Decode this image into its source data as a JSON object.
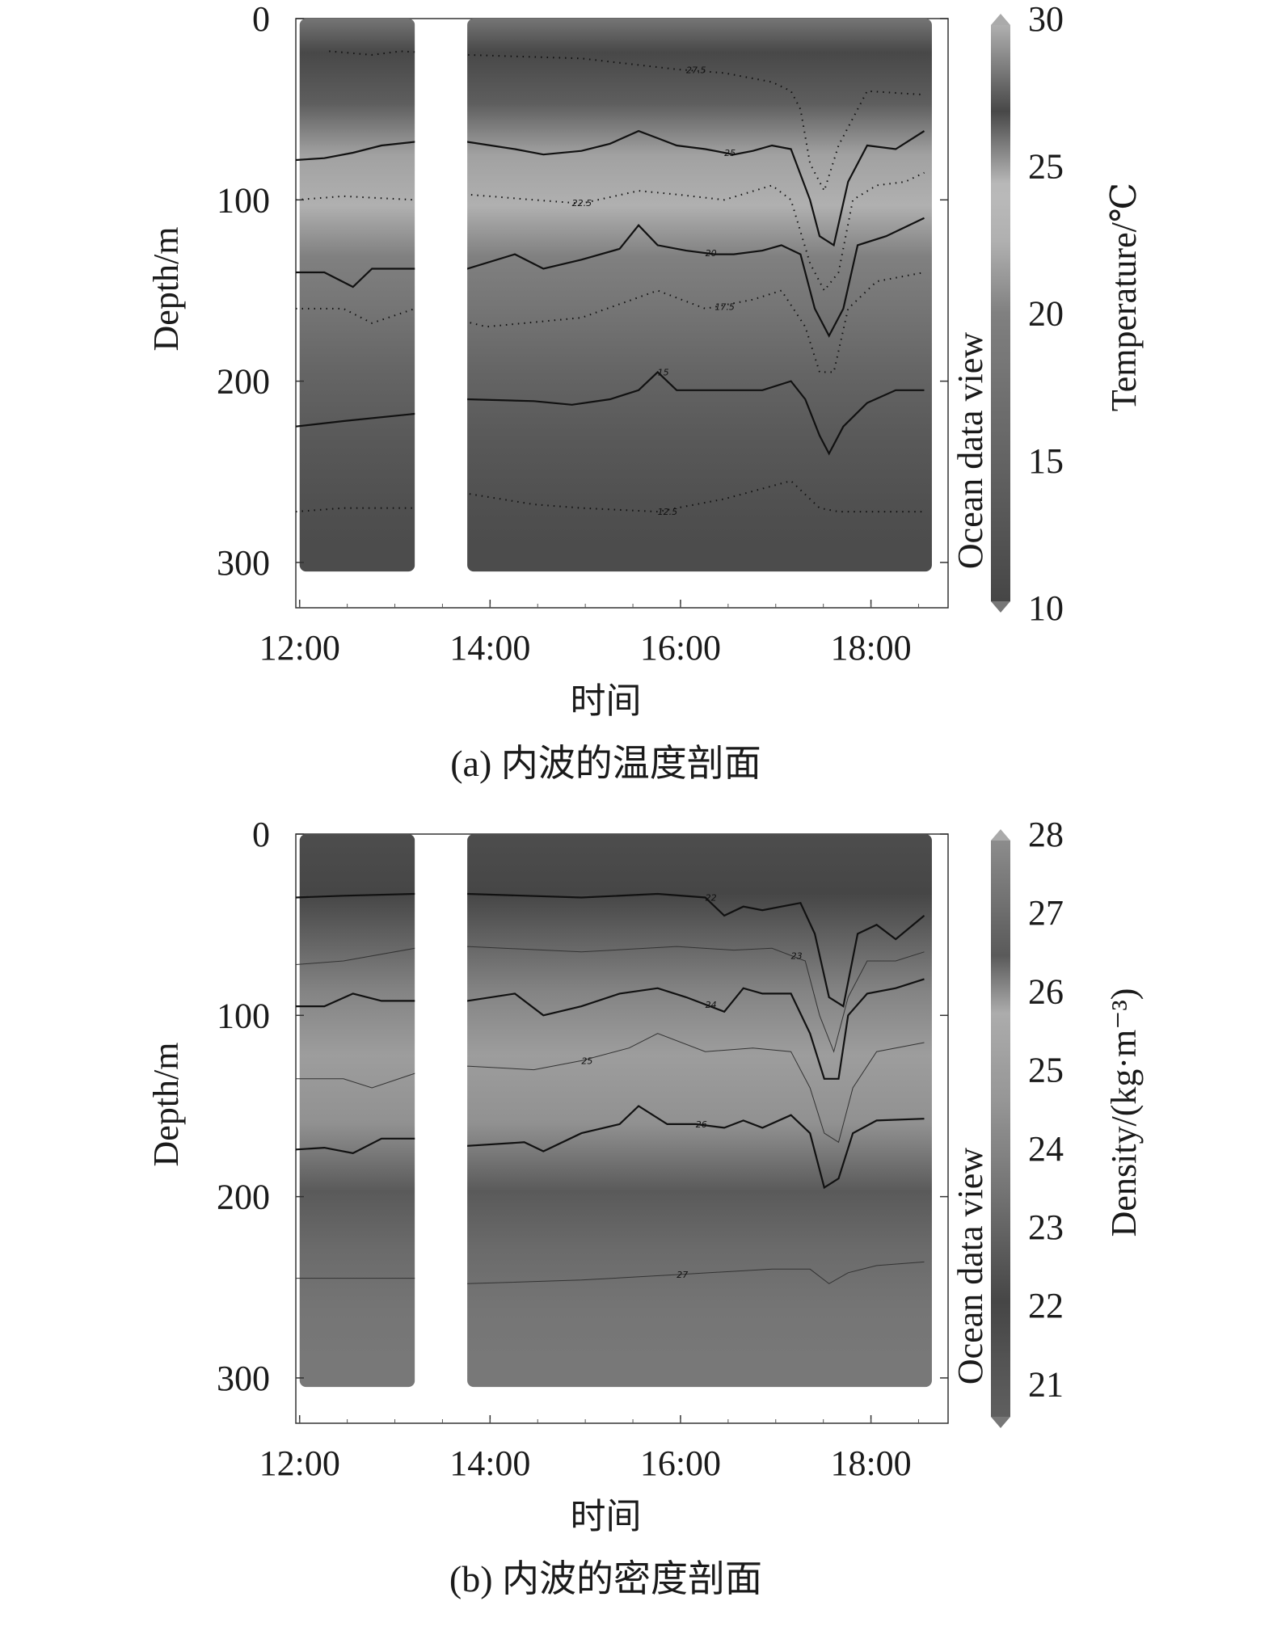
{
  "chart_data": [
    {
      "type": "heatmap",
      "caption": "(a) 内波的温度剖面",
      "xlabel": "时间",
      "ylabel": "Depth/m",
      "watermark": "Ocean data view",
      "colorbar_label": "Temperature/℃",
      "x_ticks": [
        "12:00",
        "14:00",
        "16:00",
        "18:00"
      ],
      "y_ticks": [
        "0",
        "100",
        "200",
        "300"
      ],
      "colorbar_ticks": [
        "10",
        "15",
        "20",
        "25",
        "30"
      ],
      "xlim": [
        0,
        6.85
      ],
      "ylim": [
        0,
        325
      ],
      "colorbar_range": [
        10,
        30
      ],
      "x_unit_note": "hours after 12:00",
      "data_gap": [
        1.25,
        1.8
      ],
      "background_profile": [
        {
          "depth": 0,
          "value": 26.0
        },
        {
          "depth": 20,
          "value": 27.0
        },
        {
          "depth": 50,
          "value": 26.5
        },
        {
          "depth": 80,
          "value": 25.0
        },
        {
          "depth": 110,
          "value": 22.5
        },
        {
          "depth": 140,
          "value": 20.0
        },
        {
          "depth": 170,
          "value": 18.0
        },
        {
          "depth": 210,
          "value": 15.0
        },
        {
          "depth": 250,
          "value": 13.0
        },
        {
          "depth": 290,
          "value": 11.5
        },
        {
          "depth": 310,
          "value": 11.0
        }
      ],
      "contours": [
        {
          "level": 27.5,
          "label": "27.5",
          "style": "dotted",
          "label_x": 4.1,
          "x": [
            0.35,
            0.8,
            1.1,
            1.8,
            3.0,
            4.0,
            4.5,
            5.0,
            5.2,
            5.3,
            5.4,
            5.55,
            5.7,
            6.0,
            6.6
          ],
          "y": [
            18,
            20,
            18,
            20,
            22,
            28,
            30,
            35,
            40,
            50,
            80,
            95,
            70,
            40,
            42
          ]
        },
        {
          "level": 25,
          "label": "25",
          "style": "solid",
          "label_x": 4.5,
          "x": [
            0,
            0.3,
            0.6,
            0.9,
            1.25,
            1.8,
            2.3,
            2.6,
            3.0,
            3.3,
            3.6,
            3.8,
            4.0,
            4.3,
            4.6,
            4.8,
            5.0,
            5.2,
            5.4,
            5.5,
            5.65,
            5.8,
            6.0,
            6.3,
            6.6
          ],
          "y": [
            78,
            77,
            74,
            70,
            68,
            68,
            72,
            75,
            73,
            69,
            62,
            66,
            70,
            72,
            75,
            73,
            70,
            72,
            100,
            120,
            125,
            90,
            70,
            72,
            62
          ]
        },
        {
          "level": 22.5,
          "label": "22.5",
          "style": "dotted",
          "label_x": 2.9,
          "x": [
            0,
            0.5,
            1.25,
            1.8,
            2.5,
            3.0,
            3.6,
            4.0,
            4.5,
            5.0,
            5.2,
            5.4,
            5.55,
            5.7,
            5.85,
            6.1,
            6.4,
            6.6
          ],
          "y": [
            100,
            98,
            100,
            97,
            100,
            102,
            95,
            97,
            100,
            92,
            100,
            135,
            150,
            140,
            100,
            92,
            90,
            85
          ]
        },
        {
          "level": 20,
          "label": "20",
          "style": "solid",
          "label_x": 4.3,
          "x": [
            0,
            0.3,
            0.6,
            0.8,
            1.25,
            1.8,
            2.3,
            2.6,
            3.0,
            3.4,
            3.6,
            3.8,
            4.1,
            4.4,
            4.6,
            4.9,
            5.1,
            5.3,
            5.45,
            5.6,
            5.75,
            5.9,
            6.2,
            6.6
          ],
          "y": [
            140,
            140,
            148,
            138,
            138,
            138,
            130,
            138,
            133,
            127,
            114,
            125,
            128,
            130,
            130,
            128,
            125,
            130,
            160,
            175,
            160,
            125,
            120,
            110
          ]
        },
        {
          "level": 17.5,
          "label": "17.5",
          "style": "dotted",
          "label_x": 4.4,
          "x": [
            0,
            0.5,
            0.8,
            1.25,
            2.0,
            3.0,
            3.8,
            4.3,
            4.8,
            5.1,
            5.35,
            5.5,
            5.65,
            5.8,
            6.1,
            6.6
          ],
          "y": [
            160,
            160,
            168,
            160,
            170,
            165,
            150,
            160,
            155,
            150,
            170,
            195,
            195,
            160,
            145,
            140
          ]
        },
        {
          "level": 15,
          "label": "15",
          "style": "solid",
          "label_x": 3.8,
          "x": [
            0,
            0.5,
            1.25,
            1.8,
            2.5,
            2.9,
            3.3,
            3.6,
            3.8,
            4.0,
            4.3,
            4.6,
            4.9,
            5.2,
            5.35,
            5.5,
            5.6,
            5.75,
            6.0,
            6.3,
            6.6
          ],
          "y": [
            225,
            222,
            218,
            210,
            211,
            213,
            210,
            205,
            195,
            205,
            205,
            205,
            205,
            200,
            210,
            230,
            240,
            225,
            212,
            205,
            205
          ]
        },
        {
          "level": 12.5,
          "label": "12.5",
          "style": "dotted",
          "label_x": 3.8,
          "x": [
            0,
            0.5,
            1.25,
            1.8,
            2.5,
            3.0,
            3.8,
            4.5,
            5.2,
            5.5,
            5.7,
            6.0,
            6.6
          ],
          "y": [
            272,
            270,
            270,
            262,
            268,
            270,
            272,
            265,
            255,
            270,
            272,
            272,
            272
          ]
        }
      ]
    },
    {
      "type": "heatmap",
      "caption": "(b) 内波的密度剖面",
      "xlabel": "时间",
      "ylabel": "Depth/m",
      "watermark": "Ocean data view",
      "colorbar_label": "Density/(kg·m⁻³)",
      "x_ticks": [
        "12:00",
        "14:00",
        "16:00",
        "18:00"
      ],
      "y_ticks": [
        "0",
        "100",
        "200",
        "300"
      ],
      "colorbar_ticks": [
        "21",
        "22",
        "23",
        "24",
        "25",
        "26",
        "27",
        "28"
      ],
      "xlim": [
        0,
        6.85
      ],
      "ylim": [
        0,
        325
      ],
      "colorbar_range": [
        20.5,
        28
      ],
      "x_unit_note": "hours after 12:00",
      "data_gap": [
        1.25,
        1.8
      ],
      "background_profile": [
        {
          "depth": 0,
          "value": 21.6
        },
        {
          "depth": 35,
          "value": 22.0
        },
        {
          "depth": 65,
          "value": 23.0
        },
        {
          "depth": 93,
          "value": 24.0
        },
        {
          "depth": 130,
          "value": 25.0
        },
        {
          "depth": 170,
          "value": 26.0
        },
        {
          "depth": 210,
          "value": 26.5
        },
        {
          "depth": 245,
          "value": 27.0
        },
        {
          "depth": 280,
          "value": 27.3
        },
        {
          "depth": 310,
          "value": 27.4
        }
      ],
      "contours": [
        {
          "level": 22,
          "label": "22",
          "style": "solid",
          "label_x": 4.3,
          "x": [
            0,
            0.5,
            1.25,
            1.8,
            3.0,
            3.8,
            4.3,
            4.5,
            4.7,
            4.9,
            5.1,
            5.3,
            5.45,
            5.6,
            5.75,
            5.9,
            6.1,
            6.3,
            6.6
          ],
          "y": [
            35,
            34,
            33,
            33,
            35,
            33,
            35,
            45,
            40,
            42,
            40,
            38,
            55,
            90,
            95,
            55,
            50,
            58,
            45
          ]
        },
        {
          "level": 23,
          "label": "23",
          "style": "thin",
          "label_x": 5.2,
          "x": [
            0,
            0.5,
            1.25,
            1.8,
            3.0,
            4.0,
            4.6,
            5.0,
            5.35,
            5.5,
            5.65,
            5.8,
            6.0,
            6.3,
            6.6
          ],
          "y": [
            72,
            70,
            63,
            62,
            65,
            62,
            64,
            63,
            70,
            100,
            120,
            90,
            70,
            70,
            65
          ]
        },
        {
          "level": 24,
          "label": "24",
          "style": "solid",
          "label_x": 4.3,
          "x": [
            0,
            0.3,
            0.6,
            0.9,
            1.25,
            1.8,
            2.3,
            2.6,
            3.0,
            3.4,
            3.8,
            4.1,
            4.5,
            4.7,
            4.9,
            5.2,
            5.4,
            5.55,
            5.7,
            5.8,
            6.0,
            6.3,
            6.6
          ],
          "y": [
            95,
            95,
            88,
            92,
            92,
            92,
            88,
            100,
            95,
            88,
            85,
            90,
            98,
            85,
            88,
            88,
            110,
            135,
            135,
            100,
            88,
            85,
            80
          ]
        },
        {
          "level": 25,
          "label": "25",
          "style": "thin",
          "label_x": 3.0,
          "x": [
            0,
            0.5,
            0.8,
            1.25,
            1.8,
            2.5,
            3.0,
            3.5,
            3.8,
            4.3,
            4.8,
            5.2,
            5.4,
            5.55,
            5.7,
            5.85,
            6.1,
            6.6
          ],
          "y": [
            135,
            135,
            140,
            132,
            128,
            130,
            125,
            118,
            110,
            120,
            118,
            120,
            140,
            165,
            170,
            140,
            120,
            115
          ]
        },
        {
          "level": 26,
          "label": "26",
          "style": "solid",
          "label_x": 4.2,
          "x": [
            0,
            0.3,
            0.6,
            0.9,
            1.25,
            1.8,
            2.4,
            2.6,
            3.0,
            3.4,
            3.6,
            3.9,
            4.2,
            4.5,
            4.7,
            4.9,
            5.2,
            5.4,
            5.55,
            5.7,
            5.85,
            6.1,
            6.6
          ],
          "y": [
            174,
            173,
            176,
            168,
            168,
            172,
            170,
            175,
            165,
            160,
            150,
            160,
            160,
            162,
            158,
            162,
            155,
            165,
            195,
            190,
            165,
            158,
            157
          ]
        },
        {
          "level": 27,
          "label": "27",
          "style": "thin",
          "label_x": 4.0,
          "x": [
            0,
            1.25,
            1.8,
            3.0,
            4.0,
            5.0,
            5.4,
            5.6,
            5.8,
            6.1,
            6.6
          ],
          "y": [
            245,
            245,
            248,
            246,
            243,
            240,
            240,
            248,
            242,
            238,
            236
          ]
        }
      ]
    }
  ]
}
